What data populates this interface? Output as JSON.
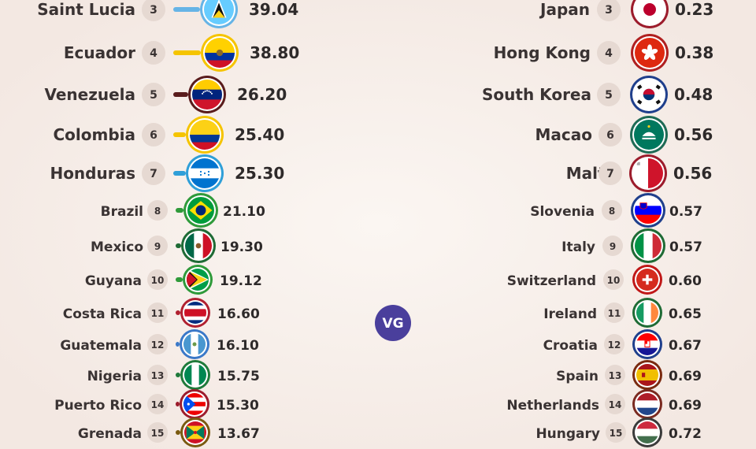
{
  "logo": {
    "text": "VG",
    "color": "#4a3f9c"
  },
  "colors": {
    "background": "#f8f1ec",
    "rank_badge": "#e6d9d2",
    "text": "#3a3333"
  },
  "chart_data": [
    {
      "type": "table",
      "rows": [
        {
          "rank": "3",
          "name": "Saint Lucia",
          "value": "39.04",
          "flag": "saint-lucia-flag",
          "color": "#66b4e6"
        },
        {
          "rank": "4",
          "name": "Ecuador",
          "value": "38.80",
          "flag": "ecuador-flag",
          "color": "#f5c400"
        },
        {
          "rank": "5",
          "name": "Venezuela",
          "value": "26.20",
          "flag": "venezuela-flag",
          "color": "#5a1c1c"
        },
        {
          "rank": "6",
          "name": "Colombia",
          "value": "25.40",
          "flag": "colombia-flag",
          "color": "#f5c400"
        },
        {
          "rank": "7",
          "name": "Honduras",
          "value": "25.30",
          "flag": "honduras-flag",
          "color": "#2f9fd8"
        },
        {
          "rank": "8",
          "name": "Brazil",
          "value": "21.10",
          "flag": "brazil-flag",
          "color": "#2f9a3a"
        },
        {
          "rank": "9",
          "name": "Mexico",
          "value": "19.30",
          "flag": "mexico-flag",
          "color": "#1f6b35"
        },
        {
          "rank": "10",
          "name": "Guyana",
          "value": "19.12",
          "flag": "guyana-flag",
          "color": "#2f9a3a"
        },
        {
          "rank": "11",
          "name": "Costa Rica",
          "value": "16.60",
          "flag": "costa-rica-flag",
          "color": "#b02030"
        },
        {
          "rank": "12",
          "name": "Guatemala",
          "value": "16.10",
          "flag": "guatemala-flag",
          "color": "#3a78c8"
        },
        {
          "rank": "13",
          "name": "Nigeria",
          "value": "15.75",
          "flag": "nigeria-flag",
          "color": "#1f7a3a"
        },
        {
          "rank": "14",
          "name": "Puerto Rico",
          "value": "15.30",
          "flag": "puerto-rico-flag",
          "color": "#9c1c2c"
        },
        {
          "rank": "15",
          "name": "Grenada",
          "value": "13.67",
          "flag": "grenada-flag",
          "color": "#7a5a10"
        }
      ]
    },
    {
      "type": "table",
      "rows": [
        {
          "rank": "3",
          "name": "Japan",
          "value": "0.23",
          "flag": "japan-flag",
          "color": "#9c1c2c"
        },
        {
          "rank": "4",
          "name": "Hong Kong",
          "value": "0.38",
          "flag": "hong-kong-flag",
          "color": "#b02020"
        },
        {
          "rank": "5",
          "name": "South Korea",
          "value": "0.48",
          "flag": "south-korea-flag",
          "color": "#1f3f8c"
        },
        {
          "rank": "6",
          "name": "Macao",
          "value": "0.56",
          "flag": "macao-flag",
          "color": "#1f6b55"
        },
        {
          "rank": "7",
          "name": "Malta",
          "value": "0.56",
          "flag": "malta-flag",
          "color": "#9c1c2c"
        },
        {
          "rank": "8",
          "name": "Slovenia",
          "value": "0.57",
          "flag": "slovenia-flag",
          "color": "#1f3f8c"
        },
        {
          "rank": "9",
          "name": "Italy",
          "value": "0.57",
          "flag": "italy-flag",
          "color": "#1f6b35"
        },
        {
          "rank": "10",
          "name": "Switzerland",
          "value": "0.60",
          "flag": "switzerland-flag",
          "color": "#c01818"
        },
        {
          "rank": "11",
          "name": "Ireland",
          "value": "0.65",
          "flag": "ireland-flag",
          "color": "#1f6b35"
        },
        {
          "rank": "12",
          "name": "Croatia",
          "value": "0.67",
          "flag": "croatia-flag",
          "color": "#1f3f8c"
        },
        {
          "rank": "13",
          "name": "Spain",
          "value": "0.69",
          "flag": "spain-flag",
          "color": "#7a2a10"
        },
        {
          "rank": "14",
          "name": "Netherlands",
          "value": "0.69",
          "flag": "netherlands-flag",
          "color": "#7a2a20"
        },
        {
          "rank": "15",
          "name": "Hungary",
          "value": "0.72",
          "flag": "hungary-flag",
          "color": "#3a3a3a"
        }
      ]
    }
  ]
}
